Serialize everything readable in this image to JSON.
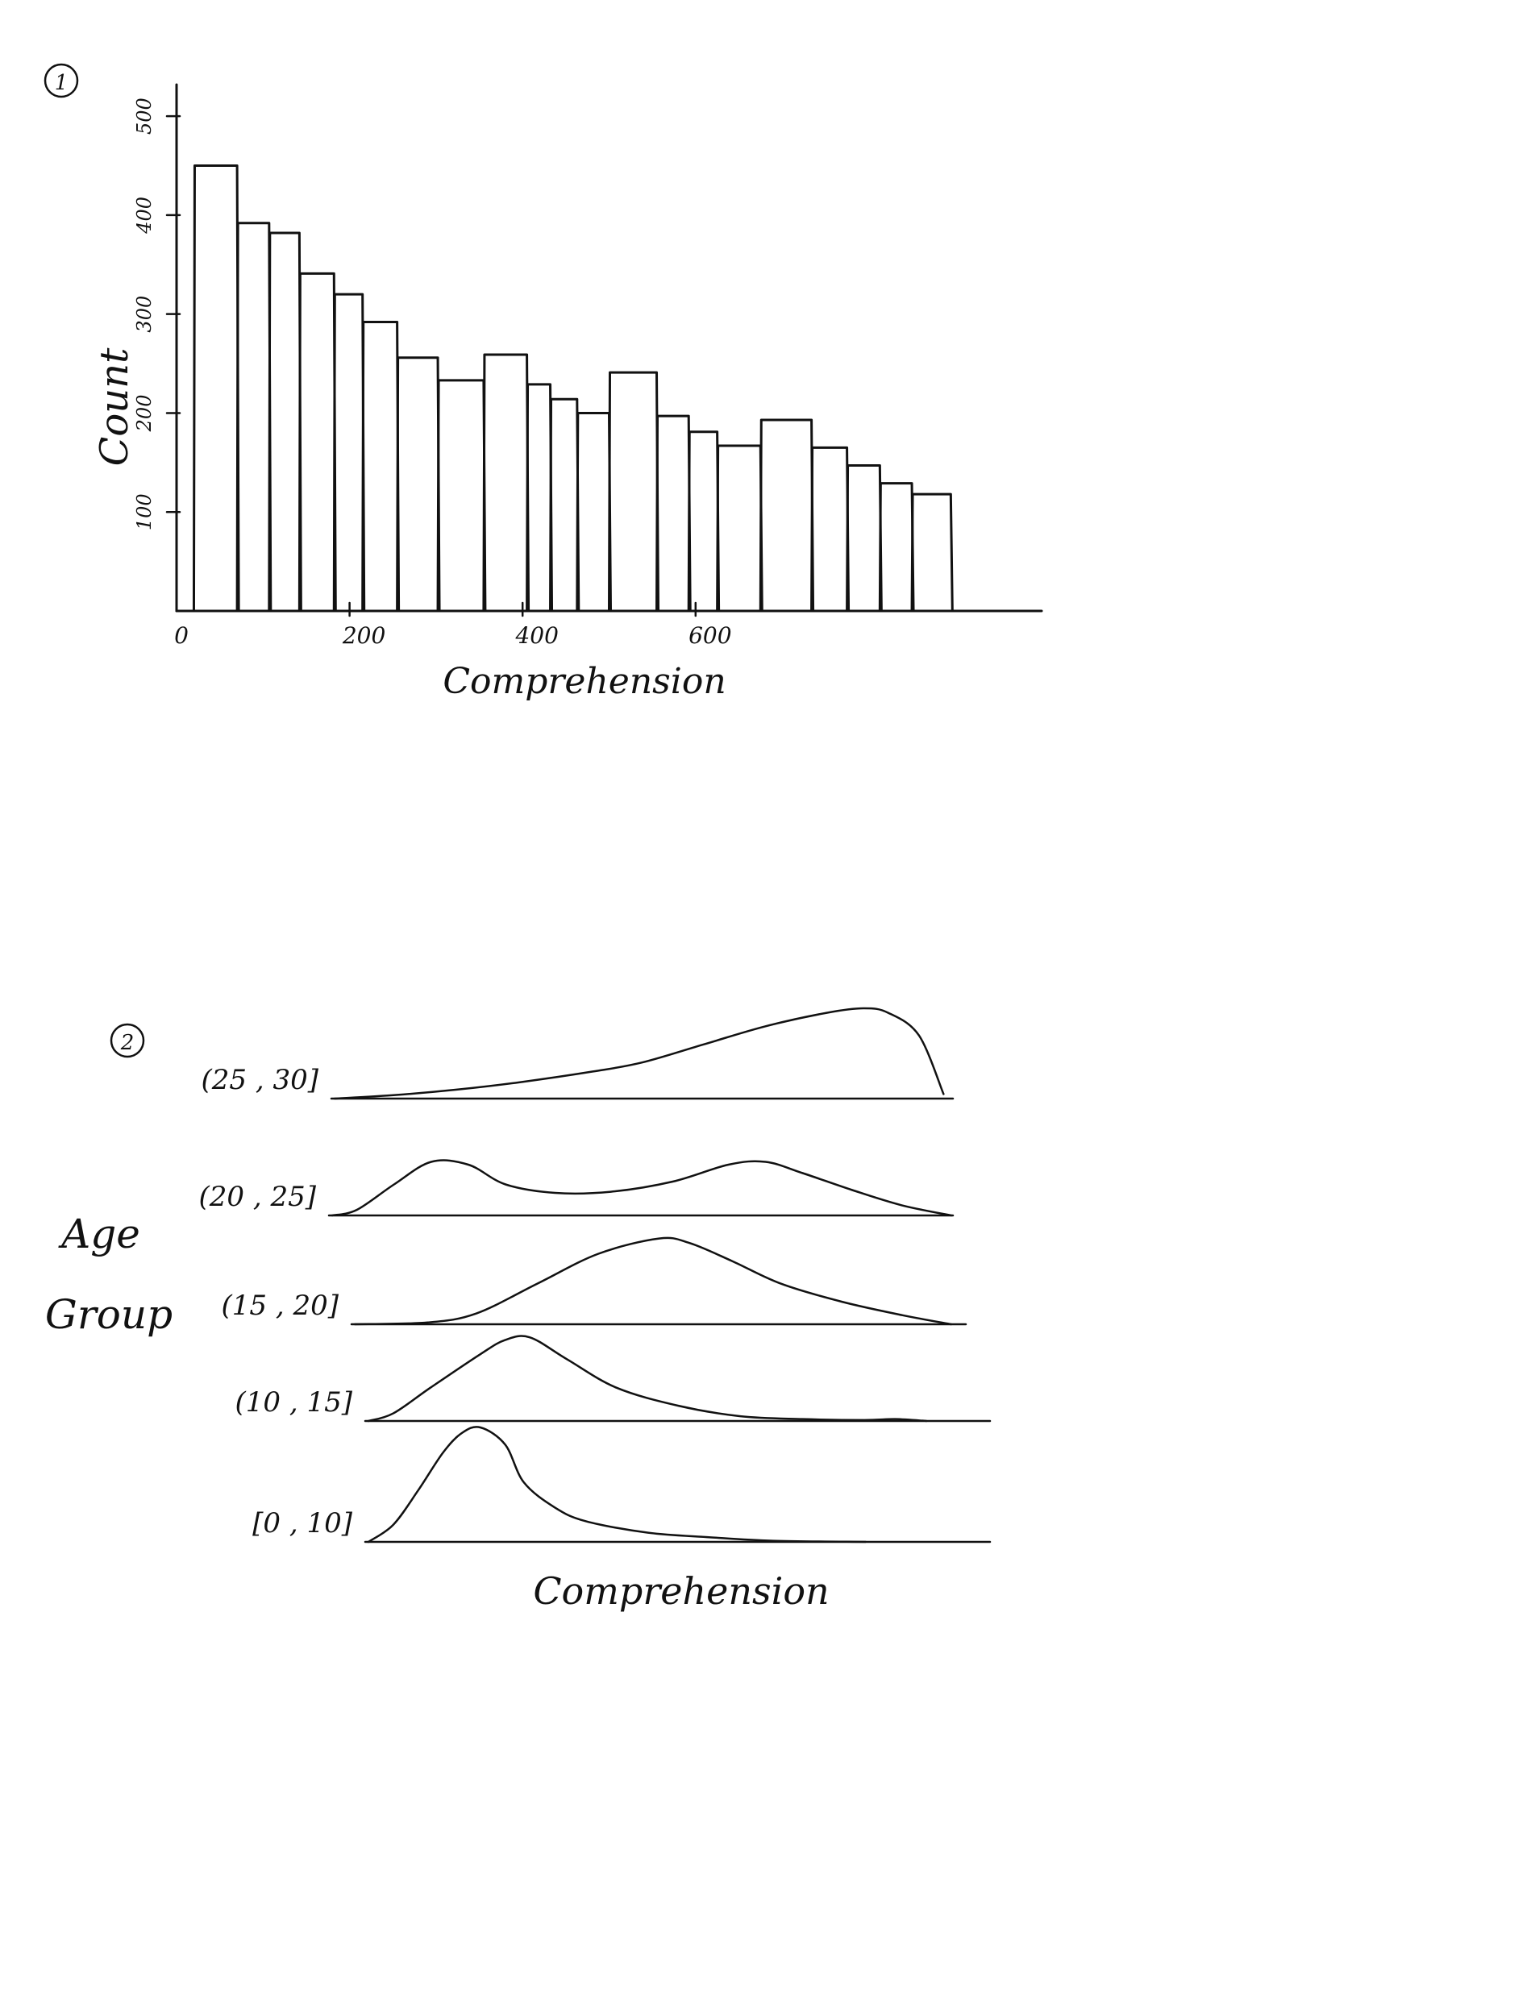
{
  "figures": [
    {
      "marker": "1"
    },
    {
      "marker": "2"
    }
  ],
  "chart_data": [
    {
      "type": "bar",
      "xlabel": "Comprehension",
      "ylabel": "Count",
      "x_ticks": [
        "0",
        "200",
        "400",
        "600"
      ],
      "y_ticks": [
        "100",
        "200",
        "300",
        "400",
        "500"
      ],
      "xlim": [
        0,
        1000
      ],
      "ylim": [
        0,
        540
      ],
      "bins": [
        {
          "x0": 20,
          "x1": 70,
          "value": 450
        },
        {
          "x0": 70,
          "x1": 107,
          "value": 392
        },
        {
          "x0": 107,
          "x1": 142,
          "value": 382
        },
        {
          "x0": 142,
          "x1": 182,
          "value": 341
        },
        {
          "x0": 182,
          "x1": 215,
          "value": 320
        },
        {
          "x0": 215,
          "x1": 255,
          "value": 292
        },
        {
          "x0": 255,
          "x1": 302,
          "value": 256
        },
        {
          "x0": 302,
          "x1": 355,
          "value": 233
        },
        {
          "x0": 355,
          "x1": 405,
          "value": 259
        },
        {
          "x0": 405,
          "x1": 432,
          "value": 229
        },
        {
          "x0": 432,
          "x1": 463,
          "value": 214
        },
        {
          "x0": 463,
          "x1": 500,
          "value": 200
        },
        {
          "x0": 500,
          "x1": 555,
          "value": 241
        },
        {
          "x0": 555,
          "x1": 592,
          "value": 197
        },
        {
          "x0": 592,
          "x1": 625,
          "value": 181
        },
        {
          "x0": 625,
          "x1": 675,
          "value": 167
        },
        {
          "x0": 675,
          "x1": 734,
          "value": 193
        },
        {
          "x0": 734,
          "x1": 775,
          "value": 165
        },
        {
          "x0": 775,
          "x1": 813,
          "value": 147
        },
        {
          "x0": 813,
          "x1": 850,
          "value": 129
        },
        {
          "x0": 850,
          "x1": 895,
          "value": 118
        }
      ]
    },
    {
      "type": "area",
      "subtype": "ridgeline",
      "xlabel": "Comprehension",
      "ylabel": "Age Group",
      "xlim": [
        0,
        1
      ],
      "density_max": 1,
      "series": [
        {
          "name": "[0 , 10]",
          "x": [
            0,
            0.04,
            0.08,
            0.12,
            0.15,
            0.18,
            0.22,
            0.25,
            0.3,
            0.35,
            0.45,
            0.55,
            0.65,
            0.8
          ],
          "y": [
            0,
            0.15,
            0.45,
            0.78,
            0.95,
            1.0,
            0.85,
            0.52,
            0.3,
            0.18,
            0.08,
            0.04,
            0.01,
            0
          ]
        },
        {
          "name": "(10 , 15]",
          "x": [
            0,
            0.04,
            0.1,
            0.18,
            0.22,
            0.26,
            0.32,
            0.4,
            0.5,
            0.6,
            0.7,
            0.8,
            0.85,
            0.9
          ],
          "y": [
            0,
            0.08,
            0.35,
            0.7,
            0.85,
            0.88,
            0.65,
            0.35,
            0.16,
            0.05,
            0.02,
            0.01,
            0.02,
            0
          ]
        },
        {
          "name": "(15 , 20]",
          "x": [
            0,
            0.12,
            0.2,
            0.3,
            0.4,
            0.5,
            0.55,
            0.62,
            0.7,
            0.8,
            0.9,
            0.98
          ],
          "y": [
            0,
            0.02,
            0.12,
            0.45,
            0.78,
            0.95,
            0.9,
            0.7,
            0.45,
            0.25,
            0.1,
            0
          ]
        },
        {
          "name": "(20 , 25]",
          "x": [
            0,
            0.04,
            0.1,
            0.16,
            0.22,
            0.28,
            0.36,
            0.45,
            0.55,
            0.64,
            0.7,
            0.76,
            0.84,
            0.92,
            1.0
          ],
          "y": [
            0,
            0.1,
            0.55,
            0.95,
            0.9,
            0.55,
            0.4,
            0.42,
            0.6,
            0.9,
            0.95,
            0.75,
            0.45,
            0.18,
            0
          ]
        },
        {
          "name": "(25 , 30]",
          "x": [
            0,
            0.1,
            0.2,
            0.3,
            0.42,
            0.5,
            0.6,
            0.7,
            0.8,
            0.86,
            0.9,
            0.95,
            0.99
          ],
          "y": [
            0,
            0.04,
            0.1,
            0.18,
            0.3,
            0.4,
            0.6,
            0.8,
            0.95,
            1.0,
            0.95,
            0.7,
            0.05
          ]
        }
      ]
    }
  ]
}
